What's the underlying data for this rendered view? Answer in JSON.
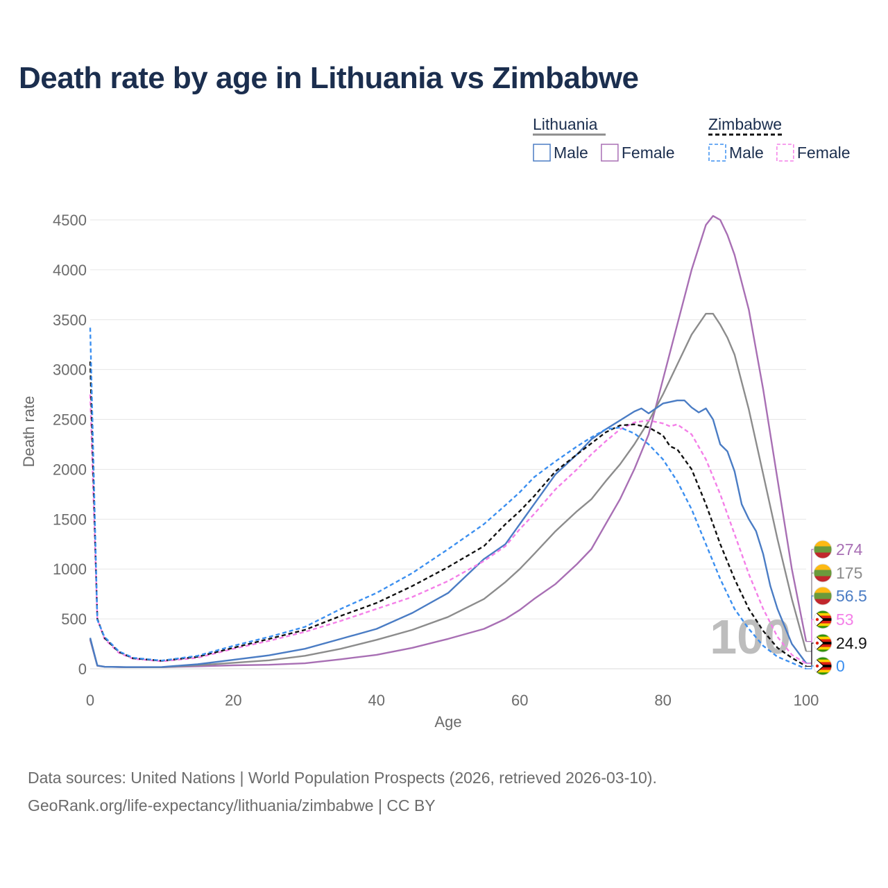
{
  "title": "Death rate by age in Lithuania vs Zimbabwe",
  "legend": {
    "groups": [
      {
        "name": "Lithuania",
        "color": "#8c8c8c",
        "dash": false,
        "items": [
          {
            "label": "Male",
            "color": "#4a7cc4"
          },
          {
            "label": "Female",
            "color": "#a86fb4"
          }
        ]
      },
      {
        "name": "Zimbabwe",
        "color": "#111111",
        "dash": true,
        "items": [
          {
            "label": "Male",
            "color": "#3b8ff0"
          },
          {
            "label": "Female",
            "color": "#f47fe8"
          }
        ]
      }
    ]
  },
  "chart_data": {
    "type": "line",
    "xlabel": "Age",
    "ylabel": "Death rate",
    "xlim": [
      0,
      100
    ],
    "ylim": [
      0,
      4500
    ],
    "xticks": [
      0,
      20,
      40,
      60,
      80,
      100
    ],
    "yticks": [
      0,
      500,
      1000,
      1500,
      2000,
      2500,
      3000,
      3500,
      4000,
      4500
    ],
    "watermark": "100",
    "series": [
      {
        "name": "Lithuania Female",
        "color": "#a86fb4",
        "dash": false,
        "points": [
          [
            0,
            290
          ],
          [
            1,
            30
          ],
          [
            2,
            20
          ],
          [
            5,
            15
          ],
          [
            10,
            15
          ],
          [
            15,
            25
          ],
          [
            20,
            35
          ],
          [
            25,
            40
          ],
          [
            30,
            55
          ],
          [
            35,
            95
          ],
          [
            40,
            140
          ],
          [
            45,
            210
          ],
          [
            50,
            300
          ],
          [
            55,
            400
          ],
          [
            58,
            500
          ],
          [
            60,
            590
          ],
          [
            62,
            700
          ],
          [
            65,
            850
          ],
          [
            68,
            1050
          ],
          [
            70,
            1200
          ],
          [
            72,
            1450
          ],
          [
            74,
            1700
          ],
          [
            76,
            2000
          ],
          [
            78,
            2350
          ],
          [
            80,
            2900
          ],
          [
            82,
            3450
          ],
          [
            84,
            4000
          ],
          [
            86,
            4450
          ],
          [
            87,
            4540
          ],
          [
            88,
            4500
          ],
          [
            89,
            4350
          ],
          [
            90,
            4150
          ],
          [
            92,
            3600
          ],
          [
            94,
            2800
          ],
          [
            96,
            1900
          ],
          [
            98,
            1000
          ],
          [
            100,
            274
          ]
        ],
        "end_label": "274",
        "flag": "lithuania"
      },
      {
        "name": "Lithuania Total",
        "color": "#8c8c8c",
        "dash": false,
        "points": [
          [
            0,
            300
          ],
          [
            1,
            32
          ],
          [
            2,
            20
          ],
          [
            5,
            16
          ],
          [
            10,
            15
          ],
          [
            15,
            35
          ],
          [
            20,
            60
          ],
          [
            25,
            85
          ],
          [
            30,
            130
          ],
          [
            35,
            200
          ],
          [
            40,
            290
          ],
          [
            45,
            390
          ],
          [
            50,
            520
          ],
          [
            55,
            700
          ],
          [
            58,
            870
          ],
          [
            60,
            1000
          ],
          [
            62,
            1150
          ],
          [
            65,
            1380
          ],
          [
            68,
            1580
          ],
          [
            70,
            1700
          ],
          [
            72,
            1880
          ],
          [
            74,
            2050
          ],
          [
            76,
            2250
          ],
          [
            78,
            2480
          ],
          [
            80,
            2750
          ],
          [
            82,
            3050
          ],
          [
            84,
            3350
          ],
          [
            86,
            3560
          ],
          [
            87,
            3560
          ],
          [
            88,
            3450
          ],
          [
            89,
            3320
          ],
          [
            90,
            3150
          ],
          [
            92,
            2600
          ],
          [
            94,
            1950
          ],
          [
            96,
            1300
          ],
          [
            98,
            700
          ],
          [
            100,
            175
          ]
        ],
        "end_label": "175",
        "flag": "lithuania"
      },
      {
        "name": "Lithuania Male",
        "color": "#4a7cc4",
        "dash": false,
        "points": [
          [
            0,
            310
          ],
          [
            1,
            33
          ],
          [
            2,
            20
          ],
          [
            5,
            17
          ],
          [
            10,
            18
          ],
          [
            15,
            45
          ],
          [
            20,
            90
          ],
          [
            25,
            135
          ],
          [
            30,
            200
          ],
          [
            35,
            300
          ],
          [
            40,
            400
          ],
          [
            45,
            560
          ],
          [
            50,
            760
          ],
          [
            55,
            1100
          ],
          [
            58,
            1250
          ],
          [
            60,
            1450
          ],
          [
            62,
            1650
          ],
          [
            65,
            1950
          ],
          [
            68,
            2150
          ],
          [
            70,
            2300
          ],
          [
            72,
            2400
          ],
          [
            74,
            2490
          ],
          [
            76,
            2580
          ],
          [
            77,
            2610
          ],
          [
            78,
            2560
          ],
          [
            80,
            2660
          ],
          [
            82,
            2690
          ],
          [
            83,
            2690
          ],
          [
            84,
            2620
          ],
          [
            85,
            2570
          ],
          [
            86,
            2610
          ],
          [
            87,
            2500
          ],
          [
            88,
            2250
          ],
          [
            89,
            2180
          ],
          [
            90,
            1980
          ],
          [
            91,
            1650
          ],
          [
            92,
            1500
          ],
          [
            93,
            1380
          ],
          [
            94,
            1150
          ],
          [
            95,
            830
          ],
          [
            96,
            600
          ],
          [
            98,
            250
          ],
          [
            100,
            56.5
          ]
        ],
        "end_label": "56.5",
        "flag": "lithuania"
      },
      {
        "name": "Zimbabwe Female",
        "color": "#f47fe8",
        "dash": true,
        "points": [
          [
            0,
            2750
          ],
          [
            1,
            500
          ],
          [
            2,
            300
          ],
          [
            4,
            160
          ],
          [
            6,
            100
          ],
          [
            10,
            75
          ],
          [
            15,
            110
          ],
          [
            20,
            200
          ],
          [
            25,
            280
          ],
          [
            30,
            370
          ],
          [
            35,
            480
          ],
          [
            40,
            600
          ],
          [
            45,
            720
          ],
          [
            50,
            880
          ],
          [
            55,
            1080
          ],
          [
            58,
            1230
          ],
          [
            60,
            1400
          ],
          [
            62,
            1550
          ],
          [
            65,
            1800
          ],
          [
            68,
            2000
          ],
          [
            70,
            2150
          ],
          [
            72,
            2280
          ],
          [
            74,
            2400
          ],
          [
            76,
            2470
          ],
          [
            78,
            2490
          ],
          [
            80,
            2460
          ],
          [
            81,
            2430
          ],
          [
            82,
            2450
          ],
          [
            84,
            2350
          ],
          [
            86,
            2100
          ],
          [
            88,
            1750
          ],
          [
            90,
            1350
          ],
          [
            92,
            950
          ],
          [
            94,
            600
          ],
          [
            96,
            320
          ],
          [
            98,
            140
          ],
          [
            100,
            53
          ]
        ],
        "end_label": "53",
        "flag": "zimbabwe"
      },
      {
        "name": "Zimbabwe Total",
        "color": "#111111",
        "dash": true,
        "points": [
          [
            0,
            3080
          ],
          [
            1,
            500
          ],
          [
            2,
            310
          ],
          [
            4,
            170
          ],
          [
            6,
            105
          ],
          [
            10,
            80
          ],
          [
            15,
            120
          ],
          [
            20,
            210
          ],
          [
            25,
            300
          ],
          [
            30,
            390
          ],
          [
            35,
            530
          ],
          [
            40,
            660
          ],
          [
            45,
            830
          ],
          [
            50,
            1020
          ],
          [
            55,
            1230
          ],
          [
            58,
            1450
          ],
          [
            60,
            1580
          ],
          [
            62,
            1730
          ],
          [
            65,
            1980
          ],
          [
            68,
            2150
          ],
          [
            70,
            2260
          ],
          [
            72,
            2370
          ],
          [
            74,
            2440
          ],
          [
            76,
            2450
          ],
          [
            78,
            2420
          ],
          [
            80,
            2340
          ],
          [
            81,
            2230
          ],
          [
            82,
            2200
          ],
          [
            84,
            2000
          ],
          [
            86,
            1650
          ],
          [
            88,
            1250
          ],
          [
            90,
            900
          ],
          [
            92,
            600
          ],
          [
            94,
            380
          ],
          [
            96,
            210
          ],
          [
            98,
            110
          ],
          [
            100,
            24.9
          ]
        ],
        "end_label": "24.9",
        "flag": "zimbabwe"
      },
      {
        "name": "Zimbabwe Male",
        "color": "#3b8ff0",
        "dash": true,
        "points": [
          [
            0,
            3420
          ],
          [
            1,
            490
          ],
          [
            2,
            320
          ],
          [
            4,
            175
          ],
          [
            6,
            110
          ],
          [
            10,
            82
          ],
          [
            15,
            130
          ],
          [
            20,
            230
          ],
          [
            25,
            320
          ],
          [
            30,
            420
          ],
          [
            35,
            600
          ],
          [
            40,
            760
          ],
          [
            45,
            960
          ],
          [
            50,
            1200
          ],
          [
            55,
            1450
          ],
          [
            58,
            1640
          ],
          [
            60,
            1770
          ],
          [
            62,
            1920
          ],
          [
            65,
            2080
          ],
          [
            68,
            2230
          ],
          [
            70,
            2320
          ],
          [
            72,
            2400
          ],
          [
            74,
            2420
          ],
          [
            76,
            2360
          ],
          [
            78,
            2250
          ],
          [
            80,
            2100
          ],
          [
            82,
            1880
          ],
          [
            84,
            1600
          ],
          [
            86,
            1250
          ],
          [
            88,
            900
          ],
          [
            90,
            600
          ],
          [
            92,
            400
          ],
          [
            94,
            230
          ],
          [
            96,
            120
          ],
          [
            98,
            60
          ],
          [
            100,
            0
          ]
        ],
        "end_label": "0",
        "flag": "zimbabwe"
      }
    ]
  },
  "source": {
    "line1": "Data sources: United Nations | World Population Prospects (2026, retrieved 2026-03-10).",
    "line2": "GeoRank.org/life-expectancy/lithuania/zimbabwe | CC BY"
  }
}
